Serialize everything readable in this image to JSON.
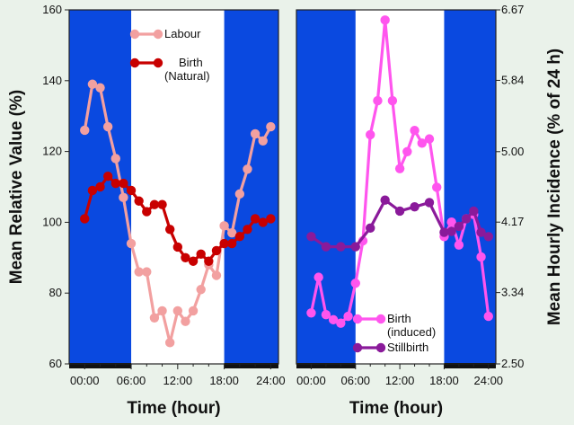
{
  "chart_data": [
    {
      "type": "line",
      "xlabel": "Time (hour)",
      "ylabel": "Mean Relative Value (%)",
      "ylim": [
        60,
        160
      ],
      "yticks": [
        "60",
        "80",
        "100",
        "120",
        "140",
        "160"
      ],
      "xlim": [
        -2,
        25
      ],
      "xticks": [
        "00:00",
        "06:00",
        "12:00",
        "18:00",
        "24:00"
      ],
      "xtick_values": [
        0,
        6,
        12,
        18,
        24
      ],
      "night_shading": [
        [
          -2,
          6
        ],
        [
          18,
          25
        ]
      ],
      "shade_color": "#0a49e0",
      "legend_position": "top-center",
      "series": [
        {
          "name": "Labour",
          "color": "#f2a0a0",
          "x": [
            0,
            1,
            2,
            3,
            4,
            5,
            6,
            7,
            8,
            9,
            10,
            11,
            12,
            13,
            14,
            15,
            16,
            17,
            18,
            19,
            20,
            21,
            22,
            23,
            24
          ],
          "y": [
            126,
            139,
            138,
            127,
            118,
            107,
            94,
            86,
            86,
            73,
            75,
            66,
            75,
            72,
            75,
            81,
            88,
            85,
            99,
            97,
            108,
            115,
            125,
            123,
            127
          ]
        },
        {
          "name": "Birth (Natural)",
          "color": "#c80000",
          "x": [
            0,
            1,
            2,
            3,
            4,
            5,
            6,
            7,
            8,
            9,
            10,
            11,
            12,
            13,
            14,
            15,
            16,
            17,
            18,
            19,
            20,
            21,
            22,
            23,
            24
          ],
          "y": [
            101,
            109,
            110,
            113,
            111,
            111,
            109,
            106,
            103,
            105,
            105,
            98,
            93,
            90,
            89,
            91,
            89,
            92,
            94,
            94,
            96,
            98,
            101,
            100,
            101
          ]
        }
      ]
    },
    {
      "type": "line",
      "xlabel": "Time (hour)",
      "ylabel": "Mean Hourly Incidence (% of 24 h)",
      "ylim": [
        2.5,
        6.67
      ],
      "yticks": [
        "2.50",
        "3.34",
        "4.17",
        "5.00",
        "5.84",
        "6.67"
      ],
      "xlim": [
        -2,
        25
      ],
      "xticks": [
        "00:00",
        "06:00",
        "12:00",
        "18:00",
        "24:00"
      ],
      "xtick_values": [
        0,
        6,
        12,
        18,
        24
      ],
      "night_shading": [
        [
          -2,
          6
        ],
        [
          18,
          25
        ]
      ],
      "shade_color": "#0a49e0",
      "legend_position": "bottom-center",
      "series": [
        {
          "name": "Birth (induced)",
          "color": "#ff55ee",
          "x": [
            0,
            1,
            2,
            3,
            4,
            5,
            6,
            7,
            8,
            9,
            10,
            11,
            12,
            13,
            14,
            15,
            16,
            17,
            18,
            19,
            20,
            21,
            22,
            23,
            24
          ],
          "y": [
            3.1,
            3.52,
            3.08,
            3.02,
            2.98,
            3.06,
            3.45,
            3.95,
            5.2,
            5.6,
            6.55,
            5.6,
            4.8,
            5.0,
            5.25,
            5.1,
            5.15,
            4.58,
            4.0,
            4.17,
            3.9,
            4.21,
            4.26,
            3.76,
            3.06
          ]
        },
        {
          "name": "Stillbirth",
          "color": "#8a1a9a",
          "x": [
            0,
            2,
            4,
            6,
            8,
            10,
            12,
            14,
            16,
            18,
            19,
            20,
            21,
            22,
            23,
            24
          ],
          "y": [
            4.0,
            3.88,
            3.88,
            3.88,
            4.1,
            4.43,
            4.3,
            4.35,
            4.4,
            4.05,
            4.06,
            4.12,
            4.21,
            4.3,
            4.05,
            4.0
          ]
        }
      ]
    }
  ]
}
